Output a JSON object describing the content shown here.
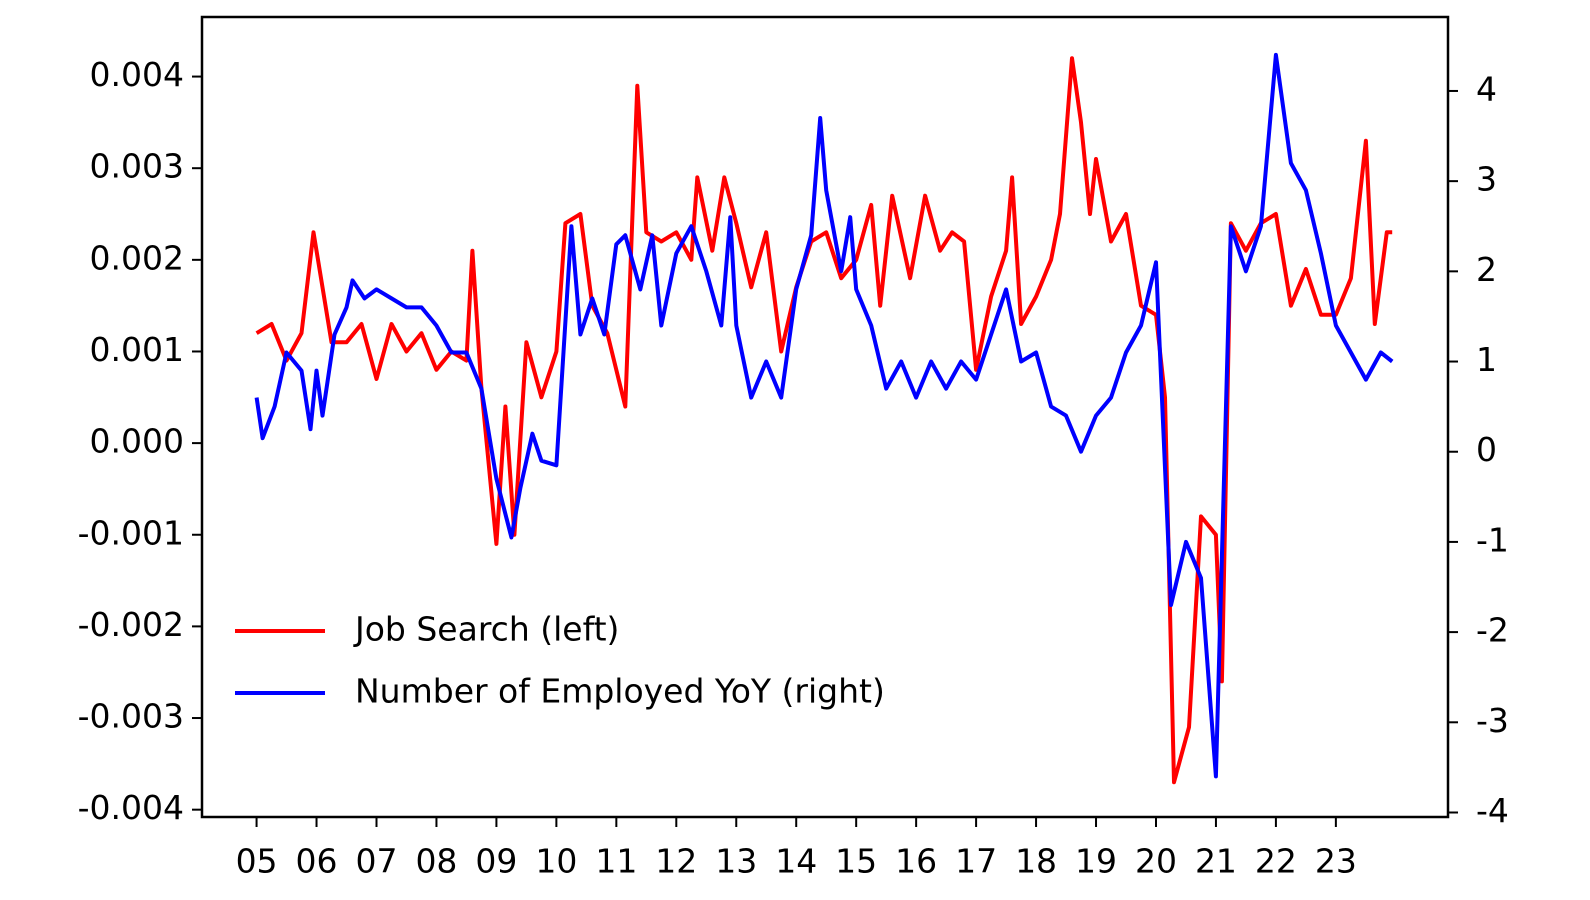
{
  "chart_data": {
    "type": "line",
    "xlim": [
      2004.09,
      2024.87
    ],
    "xticks": [
      {
        "value": 2005,
        "label": "05"
      },
      {
        "value": 2006,
        "label": "06"
      },
      {
        "value": 2007,
        "label": "07"
      },
      {
        "value": 2008,
        "label": "08"
      },
      {
        "value": 2009,
        "label": "09"
      },
      {
        "value": 2010,
        "label": "10"
      },
      {
        "value": 2011,
        "label": "11"
      },
      {
        "value": 2012,
        "label": "12"
      },
      {
        "value": 2013,
        "label": "13"
      },
      {
        "value": 2014,
        "label": "14"
      },
      {
        "value": 2015,
        "label": "15"
      },
      {
        "value": 2016,
        "label": "16"
      },
      {
        "value": 2017,
        "label": "17"
      },
      {
        "value": 2018,
        "label": "18"
      },
      {
        "value": 2019,
        "label": "19"
      },
      {
        "value": 2020,
        "label": "20"
      },
      {
        "value": 2021,
        "label": "21"
      },
      {
        "value": 2022,
        "label": "22"
      },
      {
        "value": 2023,
        "label": "23"
      }
    ],
    "ylim": [
      -0.00408,
      0.00465
    ],
    "yticks": [
      -0.004,
      -0.003,
      -0.002,
      -0.001,
      {
        "value": 0,
        "label": "0.000"
      },
      0.001,
      0.002,
      0.003,
      0.004
    ],
    "y2lim": [
      -4.05,
      4.82
    ],
    "y2ticks": [
      -4,
      -3,
      -2,
      -1,
      0,
      1,
      2,
      3,
      4
    ],
    "legend": "lower left",
    "series": [
      {
        "name": "Job Search (left)",
        "color": "#ff0000",
        "x": [
          2005.0,
          2005.25,
          2005.5,
          2005.75,
          2005.95,
          2006.25,
          2006.5,
          2006.75,
          2007.0,
          2007.25,
          2007.5,
          2007.75,
          2008.0,
          2008.25,
          2008.5,
          2008.6,
          2008.75,
          2009.0,
          2009.15,
          2009.3,
          2009.5,
          2009.75,
          2010.0,
          2010.15,
          2010.4,
          2010.6,
          2010.85,
          2011.0,
          2011.15,
          2011.35,
          2011.5,
          2011.75,
          2012.0,
          2012.25,
          2012.35,
          2012.6,
          2012.8,
          2013.0,
          2013.25,
          2013.5,
          2013.75,
          2014.0,
          2014.25,
          2014.5,
          2014.75,
          2015.0,
          2015.25,
          2015.4,
          2015.6,
          2015.9,
          2016.15,
          2016.4,
          2016.6,
          2016.8,
          2017.0,
          2017.25,
          2017.5,
          2017.6,
          2017.75,
          2018.0,
          2018.25,
          2018.4,
          2018.6,
          2018.75,
          2018.9,
          2019.0,
          2019.25,
          2019.5,
          2019.75,
          2020.0,
          2020.15,
          2020.3,
          2020.55,
          2020.75,
          2021.0,
          2021.1,
          2021.25,
          2021.5,
          2021.75,
          2022.0,
          2022.25,
          2022.5,
          2022.75,
          2023.0,
          2023.25,
          2023.5,
          2023.65,
          2023.85,
          2023.94
        ],
        "values": [
          0.0012,
          0.0013,
          0.0009,
          0.0012,
          0.0023,
          0.0011,
          0.0011,
          0.0013,
          0.0007,
          0.0013,
          0.001,
          0.0012,
          0.0008,
          0.001,
          0.0009,
          0.0021,
          0.0006,
          -0.0011,
          0.0004,
          -0.001,
          0.0011,
          0.0005,
          0.001,
          0.0024,
          0.0025,
          0.0015,
          0.0012,
          0.0008,
          0.0004,
          0.0039,
          0.0023,
          0.0022,
          0.0023,
          0.002,
          0.0029,
          0.0021,
          0.0029,
          0.0024,
          0.0017,
          0.0023,
          0.001,
          0.0017,
          0.0022,
          0.0023,
          0.0018,
          0.002,
          0.0026,
          0.0015,
          0.0027,
          0.0018,
          0.0027,
          0.0021,
          0.0023,
          0.0022,
          0.0008,
          0.0016,
          0.0021,
          0.0029,
          0.0013,
          0.0016,
          0.002,
          0.0025,
          0.0042,
          0.0035,
          0.0025,
          0.0031,
          0.0022,
          0.0025,
          0.0015,
          0.0014,
          0.0005,
          -0.0037,
          -0.0031,
          -0.0008,
          -0.001,
          -0.0026,
          0.0024,
          0.0021,
          0.0024,
          0.0025,
          0.0015,
          0.0019,
          0.0014,
          0.0014,
          0.0018,
          0.0033,
          0.0013,
          0.0023,
          0.0023
        ]
      },
      {
        "name": "Number of Employed YoY (right)",
        "color": "#0000ff",
        "axis": "y2",
        "x": [
          2005.0,
          2005.1,
          2005.3,
          2005.5,
          2005.75,
          2005.9,
          2006.0,
          2006.1,
          2006.3,
          2006.5,
          2006.6,
          2006.8,
          2007.0,
          2007.25,
          2007.5,
          2007.75,
          2008.0,
          2008.25,
          2008.5,
          2008.75,
          2009.0,
          2009.25,
          2009.4,
          2009.6,
          2009.75,
          2010.0,
          2010.25,
          2010.4,
          2010.6,
          2010.8,
          2011.0,
          2011.15,
          2011.4,
          2011.6,
          2011.75,
          2012.0,
          2012.25,
          2012.5,
          2012.75,
          2012.9,
          2013.0,
          2013.25,
          2013.5,
          2013.75,
          2014.0,
          2014.25,
          2014.4,
          2014.5,
          2014.75,
          2014.9,
          2015.0,
          2015.25,
          2015.5,
          2015.75,
          2016.0,
          2016.25,
          2016.5,
          2016.75,
          2017.0,
          2017.25,
          2017.5,
          2017.75,
          2018.0,
          2018.25,
          2018.5,
          2018.75,
          2019.0,
          2019.25,
          2019.5,
          2019.75,
          2020.0,
          2020.25,
          2020.5,
          2020.75,
          2021.0,
          2021.25,
          2021.5,
          2021.75,
          2022.0,
          2022.25,
          2022.5,
          2022.75,
          2023.0,
          2023.25,
          2023.5,
          2023.75,
          2023.94
        ],
        "values": [
          0.6,
          0.15,
          0.5,
          1.1,
          0.9,
          0.25,
          0.9,
          0.4,
          1.3,
          1.6,
          1.9,
          1.7,
          1.8,
          1.7,
          1.6,
          1.6,
          1.4,
          1.1,
          1.1,
          0.7,
          -0.3,
          -0.95,
          -0.4,
          0.2,
          -0.1,
          -0.15,
          2.5,
          1.3,
          1.7,
          1.3,
          2.3,
          2.4,
          1.8,
          2.4,
          1.4,
          2.2,
          2.5,
          2.0,
          1.4,
          2.6,
          1.4,
          0.6,
          1.0,
          0.6,
          1.8,
          2.4,
          3.7,
          2.9,
          2.0,
          2.6,
          1.8,
          1.4,
          0.7,
          1.0,
          0.6,
          1.0,
          0.7,
          1.0,
          0.8,
          1.3,
          1.8,
          1.0,
          1.1,
          0.5,
          0.4,
          0.0,
          0.4,
          0.6,
          1.1,
          1.4,
          2.1,
          -1.7,
          -1.0,
          -1.4,
          -3.6,
          2.5,
          2.0,
          2.5,
          4.4,
          3.2,
          2.9,
          2.2,
          1.4,
          1.1,
          0.8,
          1.1,
          1.0
        ]
      }
    ]
  }
}
